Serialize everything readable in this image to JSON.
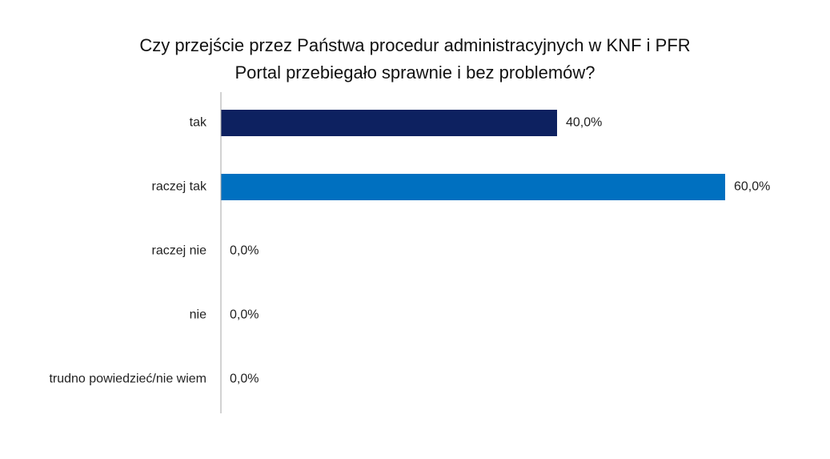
{
  "chart_data": {
    "type": "bar",
    "orientation": "horizontal",
    "title_lines": [
      "Czy przejście przez Państwa procedur administracyjnych w KNF i PFR",
      "Portal przebiegało sprawnie i bez problemów?"
    ],
    "categories": [
      "tak",
      "raczej tak",
      "raczej nie",
      "nie",
      "trudno powiedzieć/nie wiem"
    ],
    "values": [
      40.0,
      60.0,
      0.0,
      0.0,
      0.0
    ],
    "value_labels": [
      "40,0%",
      "60,0%",
      "0,0%",
      "0,0%",
      "0,0%"
    ],
    "colors": [
      "#0d2160",
      "#0070c0",
      "#0070c0",
      "#0070c0",
      "#0070c0"
    ],
    "xlim": [
      0,
      60
    ],
    "axis_color": "#a6a6a6",
    "grid": false,
    "legend": "none"
  }
}
